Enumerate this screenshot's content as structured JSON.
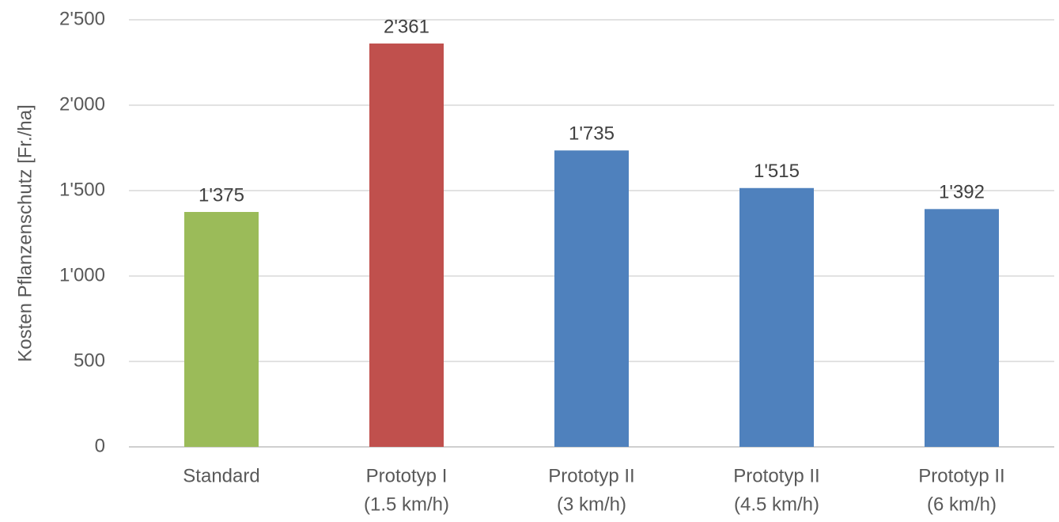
{
  "chart_data": {
    "type": "bar",
    "y_label": "Kosten Pflanzenschutz [Fr./ha]",
    "categories": [
      [
        "Standard"
      ],
      [
        "Prototyp I",
        "(1.5 km/h)"
      ],
      [
        "Prototyp II",
        "(3 km/h)"
      ],
      [
        "Prototyp II",
        "(4.5 km/h)"
      ],
      [
        "Prototyp II",
        "(6 km/h)"
      ]
    ],
    "values": [
      1375,
      2361,
      1735,
      1515,
      1392
    ],
    "value_labels": [
      "1'375",
      "2'361",
      "1'735",
      "1'515",
      "1'392"
    ],
    "colors": [
      "#9bbb59",
      "#c0504d",
      "#4f81bd",
      "#4f81bd",
      "#4f81bd"
    ],
    "ylim": [
      0,
      2500
    ],
    "yticks": [
      0,
      500,
      {
        "value": 1000,
        "label": "1'000"
      },
      {
        "value": 1500,
        "label": "1'500"
      },
      {
        "value": 2000,
        "label": "2'000"
      },
      {
        "value": 2500,
        "label": "2'500"
      }
    ],
    "grid": true
  }
}
